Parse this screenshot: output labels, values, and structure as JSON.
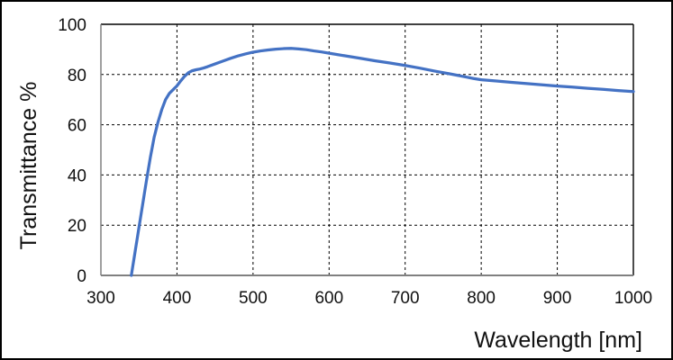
{
  "figure": {
    "background": "#ffffff",
    "outer_border_color": "#000000"
  },
  "chart_data": {
    "type": "line",
    "title": "",
    "xlabel": "Wavelength [nm]",
    "ylabel": "Transmittance %",
    "xlim": [
      300,
      1000
    ],
    "ylim": [
      0,
      100
    ],
    "x_ticks": [
      300,
      400,
      500,
      600,
      700,
      800,
      900,
      1000
    ],
    "y_ticks": [
      0,
      20,
      40,
      60,
      80,
      100
    ],
    "grid": "dashed",
    "grid_color": "#000000",
    "axis_line_color": "#808080",
    "plot_border_color": "#000000",
    "legend": "none",
    "series": [
      {
        "name": "transmittance",
        "color": "#4472C4",
        "line_width": 3.25,
        "x": [
          340,
          345,
          350,
          355,
          360,
          365,
          370,
          375,
          380,
          385,
          390,
          395,
          400,
          405,
          410,
          415,
          420,
          425,
          430,
          435,
          440,
          450,
          460,
          470,
          480,
          490,
          500,
          510,
          520,
          530,
          540,
          550,
          560,
          570,
          580,
          590,
          600,
          620,
          640,
          660,
          680,
          700,
          720,
          740,
          760,
          780,
          790,
          800,
          820,
          840,
          860,
          880,
          900,
          920,
          940,
          960,
          980,
          1000
        ],
        "y": [
          0,
          9.5,
          19,
          28.5,
          38,
          47,
          55,
          61,
          66,
          70,
          72.5,
          74,
          75.5,
          77.5,
          79.3,
          80.7,
          81.5,
          81.9,
          82.2,
          82.6,
          83.1,
          84.2,
          85.3,
          86.4,
          87.4,
          88.2,
          88.9,
          89.4,
          89.8,
          90.1,
          90.3,
          90.4,
          90.2,
          89.9,
          89.4,
          89,
          88.5,
          87.5,
          86.5,
          85.5,
          84.6,
          83.6,
          82.5,
          81.3,
          80.2,
          79,
          78.4,
          77.9,
          77.4,
          76.9,
          76.4,
          75.9,
          75.4,
          75,
          74.5,
          74.1,
          73.6,
          73.2
        ]
      }
    ]
  }
}
